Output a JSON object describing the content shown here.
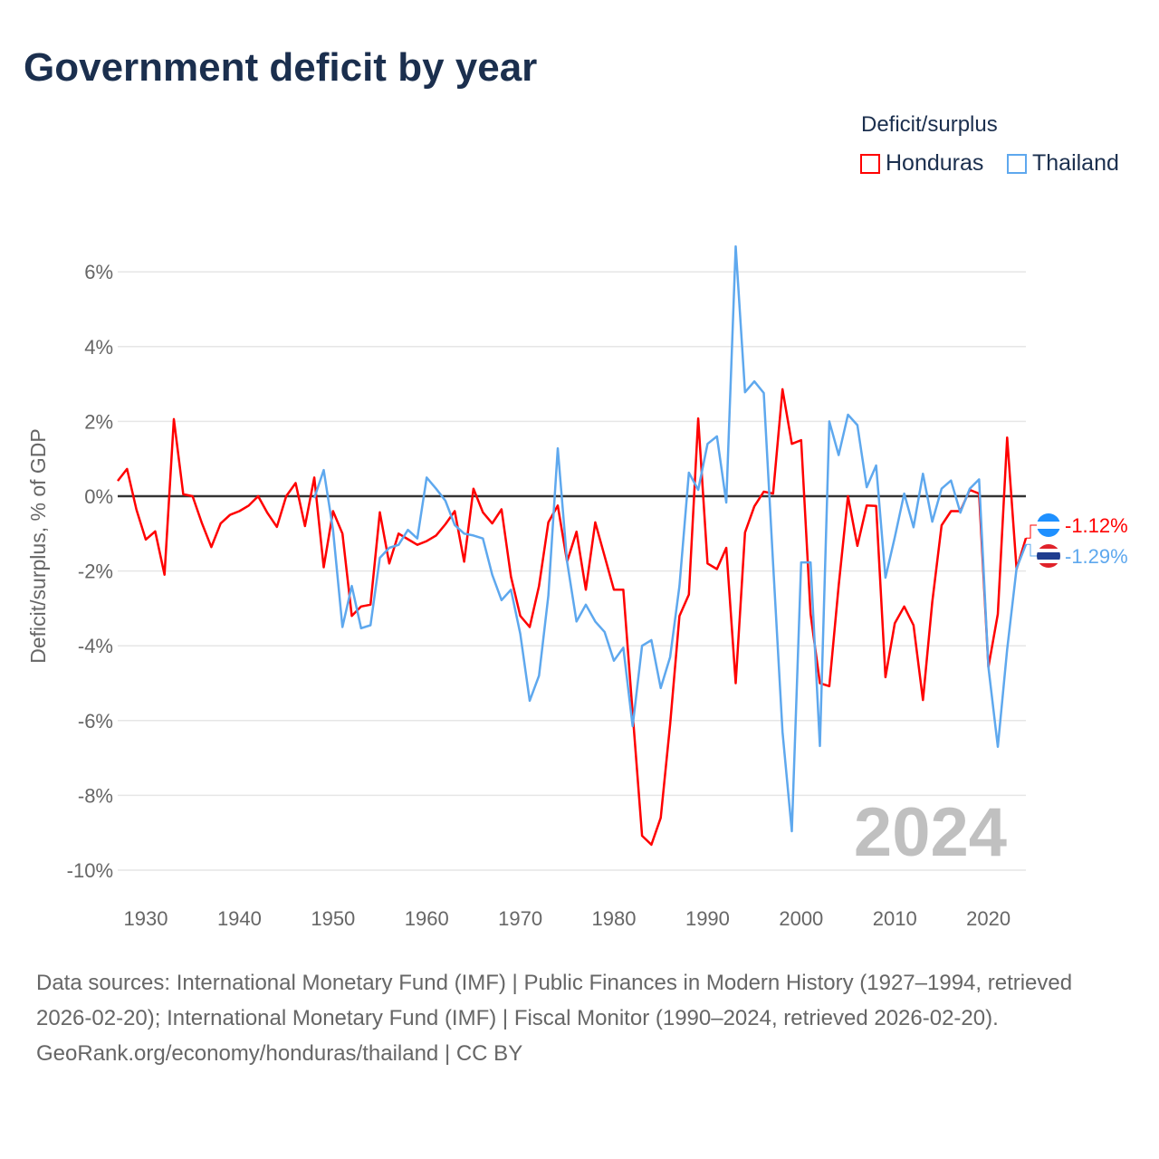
{
  "title": "Government deficit by year",
  "legend": {
    "title": "Deficit/surplus",
    "items": [
      {
        "name": "Honduras",
        "color": "#ff0000"
      },
      {
        "name": "Thailand",
        "color": "#5ea8ee"
      }
    ]
  },
  "watermark_year": "2024",
  "footer": {
    "sources": "Data sources: International Monetary Fund (IMF) | Public Finances in Modern History (1927–1994, retrieved 2026-02-20); International Monetary Fund (IMF) | Fiscal Monitor (1990–2024, retrieved 2026-02-20).",
    "credit": "GeoRank.org/economy/honduras/thailand | CC BY"
  },
  "chart_data": {
    "type": "line",
    "title": "Government deficit by year",
    "ylabel": "Deficit/surplus, % of GDP",
    "xlabel": "",
    "xlim": [
      1927,
      2024
    ],
    "ylim": [
      -10,
      6.7
    ],
    "xticks": [
      1930,
      1940,
      1950,
      1960,
      1970,
      1980,
      1990,
      2000,
      2010,
      2020
    ],
    "yticks": [
      -10,
      -8,
      -6,
      -4,
      -2,
      0,
      2,
      4,
      6
    ],
    "ytick_labels": [
      "-10%",
      "-8%",
      "-6%",
      "-4%",
      "-2%",
      "0%",
      "2%",
      "4%",
      "6%"
    ],
    "grid": true,
    "legend_position": "top-right",
    "series": [
      {
        "name": "Honduras",
        "color": "#ff0000",
        "start_year": 1927,
        "end_label": "-1.12%",
        "values": [
          0.41,
          0.73,
          -0.36,
          -1.16,
          -0.94,
          -2.1,
          2.06,
          0.05,
          0,
          -0.73,
          -1.36,
          -0.73,
          -0.5,
          -0.4,
          -0.25,
          0,
          -0.45,
          -0.82,
          0,
          0.35,
          -0.8,
          0.5,
          -1.9,
          -0.4,
          -1.0,
          -3.2,
          -2.95,
          -2.9,
          -0.43,
          -1.8,
          -1.0,
          -1.15,
          -1.3,
          -1.2,
          -1.05,
          -0.75,
          -0.4,
          -1.75,
          0.2,
          -0.43,
          -0.73,
          -0.35,
          -2.15,
          -3.2,
          -3.5,
          -2.4,
          -0.7,
          -0.25,
          -1.75,
          -0.95,
          -2.5,
          -0.7,
          -1.6,
          -2.5,
          -2.5,
          -5.8,
          -9.08,
          -9.32,
          -8.6,
          -6.1,
          -3.2,
          -2.63,
          2.08,
          -1.8,
          -1.95,
          -1.38,
          -5.0,
          -0.97,
          -0.27,
          0.12,
          0.07,
          2.86,
          1.4,
          1.5,
          -3.15,
          -5.0,
          -5.08,
          -2.4,
          0,
          -1.33,
          -0.25,
          -0.26,
          -4.84,
          -3.4,
          -2.95,
          -3.45,
          -5.45,
          -2.83,
          -0.78,
          -0.4,
          -0.4,
          0.17,
          0.07,
          -4.57,
          -3.15,
          1.57,
          -1.95,
          -1.12
        ]
      },
      {
        "name": "Thailand",
        "color": "#5ea8ee",
        "start_year": 1948,
        "end_label": "-1.29%",
        "values": [
          -0.05,
          0.7,
          -0.9,
          -3.5,
          -2.4,
          -3.53,
          -3.45,
          -1.65,
          -1.38,
          -1.3,
          -0.9,
          -1.13,
          0.5,
          0.2,
          -0.12,
          -0.77,
          -1.0,
          -1.05,
          -1.13,
          -2.1,
          -2.78,
          -2.5,
          -3.68,
          -5.47,
          -4.8,
          -2.66,
          1.28,
          -1.75,
          -3.35,
          -2.9,
          -3.35,
          -3.63,
          -4.4,
          -4.05,
          -6.15,
          -4.0,
          -3.85,
          -5.13,
          -4.3,
          -2.4,
          0.63,
          0.17,
          1.4,
          1.6,
          -0.17,
          6.68,
          2.78,
          3.07,
          2.76,
          -1.8,
          -6.3,
          -8.96,
          -1.77,
          -1.77,
          -6.68,
          2.0,
          1.1,
          2.18,
          1.9,
          0.24,
          0.82,
          -2.18,
          -1.1,
          0.07,
          -0.83,
          0.6,
          -0.68,
          0.2,
          0.42,
          -0.44,
          0.2,
          0.45,
          -4.57,
          -6.7,
          -4.1,
          -1.93,
          -1.29
        ]
      }
    ]
  }
}
